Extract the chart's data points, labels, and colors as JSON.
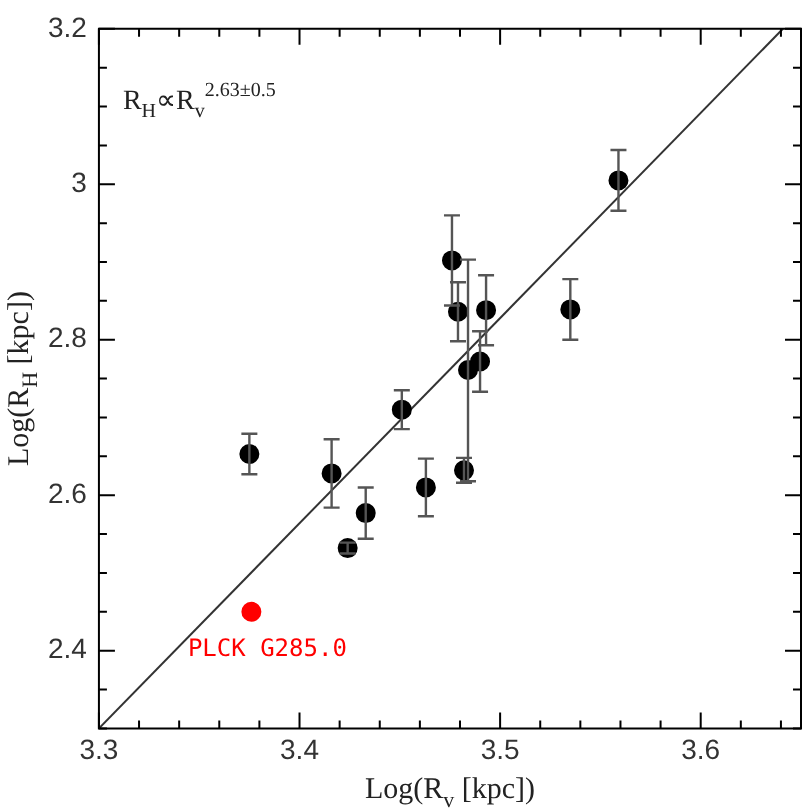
{
  "chart_data": {
    "type": "scatter",
    "xlabel": "Log(R$_{v}$ [kpc])",
    "ylabel": "Log(R$_{H}$ [kpc])",
    "xlim": [
      3.3,
      3.65
    ],
    "ylim": [
      2.3,
      3.2
    ],
    "xticks": [
      3.3,
      {
        "value": 3.32,
        "label": null
      },
      {
        "value": 3.34,
        "label": null
      },
      {
        "value": 3.36,
        "label": null
      },
      {
        "value": 3.38,
        "label": null
      },
      3.4,
      {
        "value": 3.42,
        "label": null
      },
      {
        "value": 3.44,
        "label": null
      },
      {
        "value": 3.46,
        "label": null
      },
      {
        "value": 3.48,
        "label": null
      },
      3.5,
      {
        "value": 3.52,
        "label": null
      },
      {
        "value": 3.54,
        "label": null
      },
      {
        "value": 3.56,
        "label": null
      },
      {
        "value": 3.58,
        "label": null
      },
      3.6,
      {
        "value": 3.62,
        "label": null
      },
      {
        "value": 3.64,
        "label": null
      }
    ],
    "yticks": [
      {
        "value": 2.3,
        "label": null
      },
      {
        "value": 2.35,
        "label": null
      },
      2.4,
      {
        "value": 2.45,
        "label": null
      },
      {
        "value": 2.5,
        "label": null
      },
      {
        "value": 2.55,
        "label": null
      },
      2.6,
      {
        "value": 2.65,
        "label": null
      },
      {
        "value": 2.7,
        "label": null
      },
      {
        "value": 2.75,
        "label": null
      },
      2.8,
      {
        "value": 2.85,
        "label": null
      },
      {
        "value": 2.9,
        "label": null
      },
      {
        "value": 2.95,
        "label": null
      },
      3,
      {
        "value": 3.05,
        "label": null
      },
      {
        "value": 3.1,
        "label": null
      },
      {
        "value": 3.15,
        "label": null
      },
      3.2
    ],
    "grid": false,
    "legend": false,
    "marker": "circle",
    "annotations": [
      "R$_{H}$∝R$_{v}$$^{2.63±0.5}$",
      {
        "text": "PLCK G285.0",
        "x": 3.376,
        "y": 2.45
      }
    ],
    "series": [
      {
        "color": "#000000",
        "x": [
          3.375,
          3.416,
          3.424,
          3.433,
          3.451,
          3.463,
          3.476,
          3.479,
          3.482,
          3.484,
          3.49,
          3.493,
          3.535,
          3.559
        ],
        "values": [
          2.653,
          2.628,
          2.532,
          2.577,
          2.71,
          2.61,
          2.902,
          2.836,
          2.632,
          2.761,
          2.772,
          2.838,
          2.839,
          3.005
        ],
        "errors": [
          0.026,
          0.044,
          0.007,
          0.033,
          0.025,
          0.037,
          0.058,
          0.038,
          0.016,
          [
            2.618,
            2.903
          ],
          0.039,
          0.045,
          0.039,
          0.039
        ]
      },
      {
        "color": "#ff0000",
        "x": [
          3.376
        ],
        "values": [
          2.45
        ]
      },
      {
        "type": "line",
        "marker": "none",
        "color": "#333333",
        "x": [
          3.3,
          3.641
        ],
        "values": [
          2.3,
          3.2
        ]
      }
    ]
  }
}
